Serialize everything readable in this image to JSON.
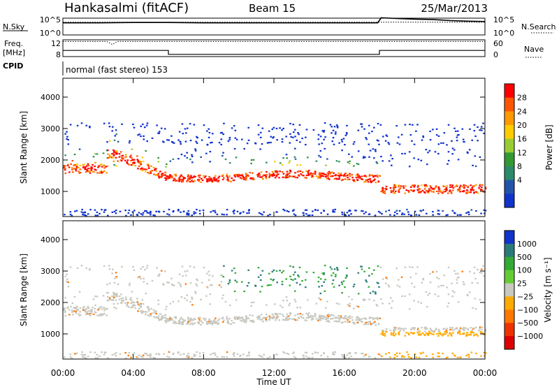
{
  "header": {
    "station": "Hankasalmi (fitACF)",
    "beam": "Beam 15",
    "date": "25/Mar/2013"
  },
  "chart_data": [
    {
      "type": "line",
      "panel": "noise",
      "ylabel_left": "N.Sky",
      "ylabel_right": "N.Search",
      "left_ticks": [
        "10^5",
        "10^0"
      ],
      "right_ticks": [
        "10^5",
        "10^0"
      ],
      "series": [
        {
          "name": "N.Sky",
          "style": "solid",
          "x": [
            0,
            2,
            4,
            6,
            8,
            10,
            12,
            14,
            16,
            17.9,
            18.1,
            19,
            20,
            21,
            22,
            23,
            24
          ],
          "y": [
            3.6,
            3.6,
            3.7,
            3.7,
            3.6,
            3.6,
            3.6,
            3.6,
            3.6,
            3.6,
            5.1,
            4.9,
            4.7,
            4.6,
            4.3,
            4.1,
            4.0
          ]
        },
        {
          "name": "N.Search",
          "style": "dotted",
          "x": [
            0,
            24
          ],
          "y": [
            3.8,
            3.8
          ]
        }
      ]
    },
    {
      "type": "line",
      "panel": "frequency-nave",
      "ylabel_left": "Freq. [MHz]",
      "ylabel_right": "Nave",
      "left_ticks": [
        "12",
        "8"
      ],
      "right_ticks": [
        "60",
        "0"
      ],
      "series": [
        {
          "name": "Freq",
          "style": "dotted",
          "x": [
            0,
            2.5,
            2.8,
            3.1,
            4,
            24
          ],
          "y": [
            11.6,
            11.6,
            10.9,
            11.6,
            11.6,
            11.6
          ]
        },
        {
          "name": "Nave",
          "style": "solid",
          "x": [
            0,
            6,
            6,
            18,
            18,
            24
          ],
          "y": [
            22,
            22,
            8,
            8,
            22,
            22
          ]
        }
      ]
    },
    {
      "type": "table",
      "panel": "cpid",
      "label": "CPID",
      "text": "normal (fast stereo) 153"
    },
    {
      "type": "heatmap",
      "panel": "power",
      "ylabel": "Slant Range [km]",
      "y_ticks": [
        1000,
        2000,
        3000,
        4000
      ],
      "ylim": [
        200,
        4600
      ],
      "colorbar": {
        "label": "Power [dB]",
        "ticks": [
          "28",
          "24",
          "20",
          "16",
          "12",
          "8",
          "4"
        ],
        "colors": [
          "#ff0000",
          "#ff5500",
          "#ff9900",
          "#ffcc00",
          "#99cc33",
          "#339933",
          "#2a8a6a",
          "#2255aa",
          "#1133cc"
        ]
      }
    },
    {
      "type": "heatmap",
      "panel": "velocity",
      "ylabel": "Slant Range [km]",
      "y_ticks": [
        1000,
        2000,
        3000,
        4000
      ],
      "ylim": [
        200,
        4600
      ],
      "colorbar": {
        "label": "Velocity [m s⁻¹]",
        "ticks": [
          "1000",
          "500",
          "100",
          "25",
          "−25",
          "−100",
          "−500",
          "−1000"
        ],
        "colors": [
          "#1133cc",
          "#2a7a7a",
          "#33aa33",
          "#66cc33",
          "#c8c8c0",
          "#ffaa00",
          "#ff7700",
          "#ee3300",
          "#dd0000"
        ]
      },
      "xlabel": "Time UT",
      "x_ticks": [
        "00:00",
        "04:00",
        "08:00",
        "12:00",
        "16:00",
        "20:00",
        "00:00"
      ]
    }
  ]
}
